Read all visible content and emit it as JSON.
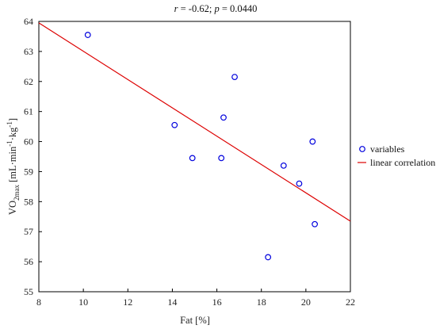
{
  "chart_data": {
    "type": "scatter",
    "title_parts": [
      {
        "text": "r",
        "italic": true
      },
      {
        "text": " = -0.62; ",
        "italic": false
      },
      {
        "text": "p",
        "italic": true
      },
      {
        "text": " = 0.0440",
        "italic": false
      }
    ],
    "xlabel": "Fat [%]",
    "ylabel": {
      "base": "VO",
      "sub": "2max",
      "unit_prefix": " [mL·min",
      "sup1": "-1",
      "unit_mid": "·kg",
      "sup2": "-1",
      "unit_suffix": "]"
    },
    "xlim": [
      8,
      22
    ],
    "ylim": [
      55,
      64
    ],
    "xticks": [
      8,
      10,
      12,
      14,
      16,
      18,
      20,
      22
    ],
    "yticks": [
      55,
      56,
      57,
      58,
      59,
      60,
      61,
      62,
      63,
      64
    ],
    "grid": false,
    "legend_position": "right",
    "series": [
      {
        "name": "variables",
        "kind": "points",
        "color": "#0000dd",
        "marker": "open-circle",
        "points": [
          {
            "x": 10.2,
            "y": 63.55
          },
          {
            "x": 14.1,
            "y": 60.55
          },
          {
            "x": 14.9,
            "y": 59.45
          },
          {
            "x": 16.2,
            "y": 59.45
          },
          {
            "x": 16.3,
            "y": 60.8
          },
          {
            "x": 16.8,
            "y": 62.15
          },
          {
            "x": 18.3,
            "y": 56.15
          },
          {
            "x": 19.0,
            "y": 59.2
          },
          {
            "x": 19.7,
            "y": 58.6
          },
          {
            "x": 20.3,
            "y": 60.0
          },
          {
            "x": 20.4,
            "y": 57.25
          }
        ]
      },
      {
        "name": "linear correlation",
        "kind": "line",
        "color": "#dd0000",
        "points": [
          {
            "x": 8,
            "y": 63.95
          },
          {
            "x": 22,
            "y": 57.35
          }
        ]
      }
    ]
  }
}
